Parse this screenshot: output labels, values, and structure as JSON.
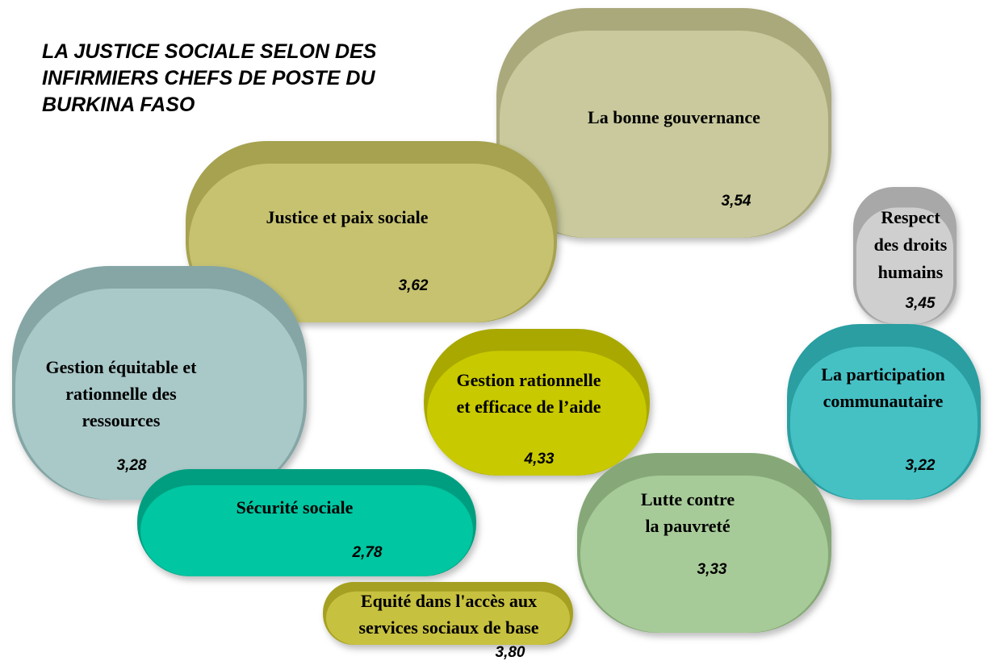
{
  "title": [
    "LA JUSTICE SOCIALE SELON DES",
    "INFIRMIERS CHEFS DE POSTE DU",
    "BURKINA FASO"
  ],
  "nodes": [
    {
      "label": [
        "La bonne gouvernance"
      ],
      "value": "3,54"
    },
    {
      "label": [
        "Justice et paix sociale"
      ],
      "value": "3,62"
    },
    {
      "label": [
        "Respect",
        "des droits",
        "humains"
      ],
      "value": "3,45"
    },
    {
      "label": [
        "Gestion équitable et",
        "rationnelle des",
        "ressources"
      ],
      "value": "3,28"
    },
    {
      "label": [
        "Gestion rationnelle",
        "et efficace de l’aide"
      ],
      "value": "4,33"
    },
    {
      "label": [
        "La participation",
        "communautaire"
      ],
      "value": "3,22"
    },
    {
      "label": [
        "Sécurité sociale"
      ],
      "value": "2,78"
    },
    {
      "label": [
        "Lutte contre",
        "la pauvreté"
      ],
      "value": "3,33"
    },
    {
      "label": [
        "Equité dans l'accès aux",
        "services sociaux de base"
      ],
      "value": "3,80"
    }
  ]
}
